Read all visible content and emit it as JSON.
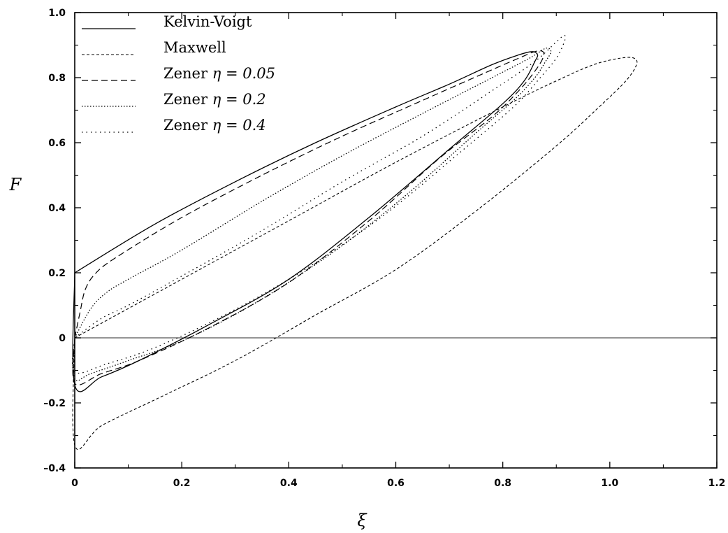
{
  "chart_data": {
    "type": "line",
    "title": "",
    "xlabel": "ξ",
    "ylabel": "F",
    "xlim": [
      0,
      1.2
    ],
    "ylim": [
      -0.4,
      1.0
    ],
    "x_ticks": [
      0,
      0.2,
      0.4,
      0.6,
      0.8,
      1.0,
      1.2
    ],
    "x_tick_labels": [
      "0",
      "0.2",
      "0.4",
      "0.6",
      "0.8",
      "1.0",
      "1.2"
    ],
    "y_ticks": [
      -0.4,
      -0.2,
      0,
      0.2,
      0.4,
      0.6,
      0.8,
      1.0
    ],
    "y_tick_labels": [
      "–0.4",
      "–0.2",
      "0",
      "0.2",
      "0.4",
      "0.6",
      "0.8",
      "1.0"
    ],
    "grid": false,
    "legend_position": "top-left",
    "zero_line": true,
    "series": [
      {
        "name": "Kelvin-Voigt",
        "legend_prefix": "Kelvin-Voigt",
        "legend_math": "",
        "style": "solid",
        "closed": true,
        "points": [
          [
            0.0,
            0.2
          ],
          [
            0.15,
            0.35
          ],
          [
            0.3,
            0.48
          ],
          [
            0.45,
            0.6
          ],
          [
            0.6,
            0.71
          ],
          [
            0.7,
            0.78
          ],
          [
            0.78,
            0.84
          ],
          [
            0.83,
            0.87
          ],
          [
            0.855,
            0.88
          ],
          [
            0.865,
            0.87
          ],
          [
            0.86,
            0.85
          ],
          [
            0.84,
            0.79
          ],
          [
            0.8,
            0.72
          ],
          [
            0.7,
            0.58
          ],
          [
            0.55,
            0.37
          ],
          [
            0.4,
            0.18
          ],
          [
            0.25,
            0.04
          ],
          [
            0.12,
            -0.07
          ],
          [
            0.05,
            -0.12
          ],
          [
            0.0,
            -0.145
          ],
          [
            0.0,
            0.2
          ]
        ]
      },
      {
        "name": "Maxwell",
        "legend_prefix": "Maxwell",
        "legend_math": "",
        "style": "dashed-fine",
        "closed": true,
        "points": [
          [
            0.0,
            0.0
          ],
          [
            0.2,
            0.18
          ],
          [
            0.4,
            0.36
          ],
          [
            0.6,
            0.54
          ],
          [
            0.8,
            0.71
          ],
          [
            0.9,
            0.79
          ],
          [
            0.97,
            0.84
          ],
          [
            1.02,
            0.86
          ],
          [
            1.045,
            0.86
          ],
          [
            1.05,
            0.84
          ],
          [
            1.03,
            0.79
          ],
          [
            0.98,
            0.71
          ],
          [
            0.9,
            0.59
          ],
          [
            0.75,
            0.39
          ],
          [
            0.6,
            0.21
          ],
          [
            0.45,
            0.07
          ],
          [
            0.3,
            -0.07
          ],
          [
            0.15,
            -0.19
          ],
          [
            0.05,
            -0.27
          ],
          [
            0.0,
            -0.33
          ],
          [
            0.0,
            0.0
          ]
        ]
      },
      {
        "name": "Zener η = 0.05",
        "legend_prefix": "Zener ",
        "legend_math": "η = 0.05",
        "style": "dashed",
        "closed": true,
        "points": [
          [
            0.0,
            0.0
          ],
          [
            0.01,
            0.08
          ],
          [
            0.02,
            0.15
          ],
          [
            0.04,
            0.2
          ],
          [
            0.08,
            0.25
          ],
          [
            0.2,
            0.37
          ],
          [
            0.35,
            0.5
          ],
          [
            0.5,
            0.62
          ],
          [
            0.65,
            0.73
          ],
          [
            0.76,
            0.81
          ],
          [
            0.83,
            0.86
          ],
          [
            0.86,
            0.88
          ],
          [
            0.875,
            0.88
          ],
          [
            0.875,
            0.86
          ],
          [
            0.86,
            0.82
          ],
          [
            0.83,
            0.76
          ],
          [
            0.78,
            0.68
          ],
          [
            0.68,
            0.55
          ],
          [
            0.55,
            0.36
          ],
          [
            0.4,
            0.17
          ],
          [
            0.25,
            0.03
          ],
          [
            0.12,
            -0.07
          ],
          [
            0.05,
            -0.11
          ],
          [
            0.0,
            -0.14
          ],
          [
            0.0,
            0.0
          ]
        ]
      },
      {
        "name": "Zener η = 0.2",
        "legend_prefix": "Zener ",
        "legend_math": "η = 0.2",
        "style": "dotted",
        "closed": true,
        "points": [
          [
            0.0,
            0.0
          ],
          [
            0.03,
            0.09
          ],
          [
            0.06,
            0.14
          ],
          [
            0.1,
            0.18
          ],
          [
            0.2,
            0.27
          ],
          [
            0.35,
            0.42
          ],
          [
            0.5,
            0.56
          ],
          [
            0.65,
            0.69
          ],
          [
            0.78,
            0.8
          ],
          [
            0.85,
            0.86
          ],
          [
            0.88,
            0.89
          ],
          [
            0.89,
            0.88
          ],
          [
            0.88,
            0.85
          ],
          [
            0.86,
            0.8
          ],
          [
            0.82,
            0.73
          ],
          [
            0.75,
            0.63
          ],
          [
            0.62,
            0.44
          ],
          [
            0.48,
            0.26
          ],
          [
            0.33,
            0.1
          ],
          [
            0.2,
            -0.01
          ],
          [
            0.1,
            -0.07
          ],
          [
            0.03,
            -0.11
          ],
          [
            0.0,
            -0.125
          ],
          [
            0.0,
            0.0
          ]
        ]
      },
      {
        "name": "Zener η = 0.4",
        "legend_prefix": "Zener ",
        "legend_math": "η = 0.4",
        "style": "dotted-sparse",
        "closed": true,
        "points": [
          [
            0.0,
            0.0
          ],
          [
            0.05,
            0.06
          ],
          [
            0.1,
            0.1
          ],
          [
            0.2,
            0.19
          ],
          [
            0.35,
            0.33
          ],
          [
            0.5,
            0.48
          ],
          [
            0.65,
            0.62
          ],
          [
            0.78,
            0.76
          ],
          [
            0.86,
            0.85
          ],
          [
            0.9,
            0.91
          ],
          [
            0.915,
            0.93
          ],
          [
            0.915,
            0.91
          ],
          [
            0.9,
            0.86
          ],
          [
            0.87,
            0.8
          ],
          [
            0.82,
            0.71
          ],
          [
            0.72,
            0.57
          ],
          [
            0.58,
            0.38
          ],
          [
            0.43,
            0.21
          ],
          [
            0.28,
            0.07
          ],
          [
            0.15,
            -0.03
          ],
          [
            0.06,
            -0.08
          ],
          [
            0.0,
            -0.105
          ],
          [
            0.0,
            0.0
          ]
        ]
      }
    ]
  }
}
